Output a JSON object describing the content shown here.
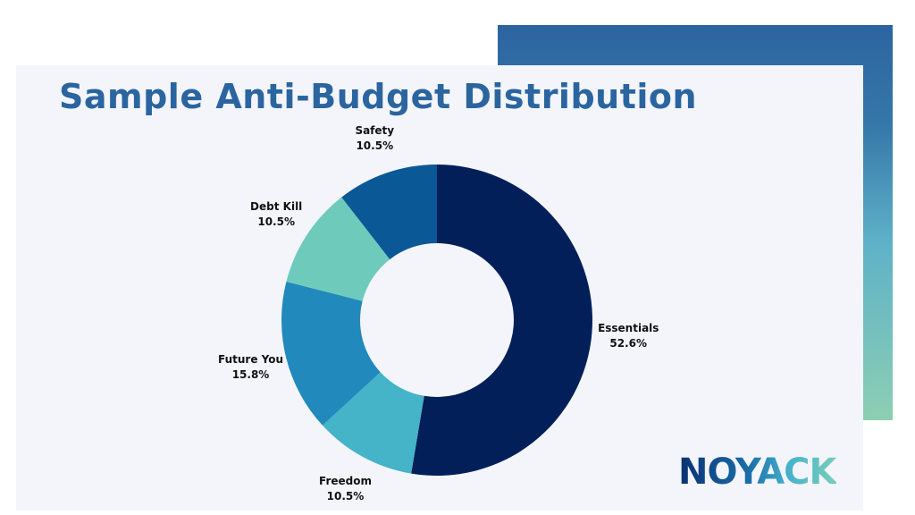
{
  "title": "Sample Anti-Budget Distribution",
  "logo": "NOYACK",
  "chart_data": {
    "type": "pie",
    "subtype": "donut",
    "title": "Sample Anti-Budget Distribution",
    "start": "top",
    "direction": "clockwise",
    "slices": [
      {
        "label": "Essentials",
        "value": 52.6,
        "pct": "52.6%",
        "color": "#021f5a"
      },
      {
        "label": "Freedom",
        "value": 10.5,
        "pct": "10.5%",
        "color": "#45b3c8"
      },
      {
        "label": "Future You",
        "value": 15.8,
        "pct": "15.8%",
        "color": "#2189bb"
      },
      {
        "label": "Debt Kill",
        "value": 10.5,
        "pct": "10.5%",
        "color": "#6ecbbb"
      },
      {
        "label": "Safety",
        "value": 10.5,
        "pct": "10.5%",
        "color": "#0b5896"
      }
    ]
  }
}
